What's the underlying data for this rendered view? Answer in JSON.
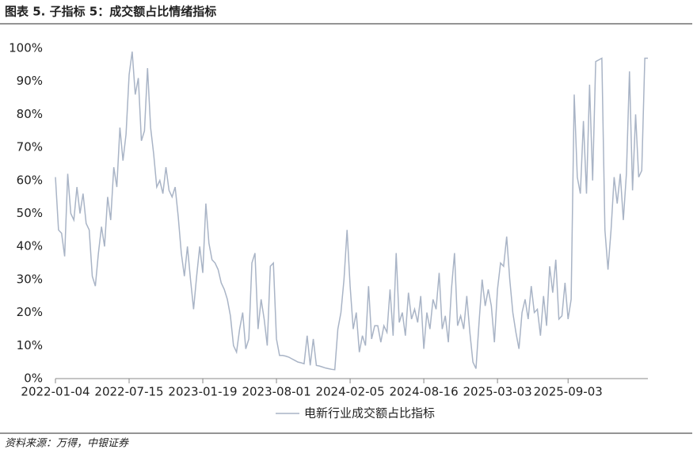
{
  "header": {
    "title": "图表 5. 子指标 5：成交额占比情绪指标"
  },
  "chart_data": {
    "type": "line",
    "categories": [
      "2022-01-04",
      null,
      null,
      null,
      null,
      null,
      null,
      null,
      null,
      null,
      null,
      null,
      null,
      null,
      null,
      null,
      null,
      null,
      null,
      null,
      null,
      null,
      null,
      null,
      "2022-07-15",
      null,
      null,
      null,
      null,
      null,
      null,
      null,
      null,
      null,
      null,
      null,
      null,
      null,
      null,
      null,
      null,
      null,
      null,
      null,
      null,
      null,
      null,
      null,
      "2023-01-19",
      null,
      null,
      null,
      null,
      null,
      null,
      null,
      null,
      null,
      null,
      null,
      null,
      null,
      null,
      null,
      null,
      null,
      null,
      null,
      null,
      null,
      null,
      null,
      "2023-08-01",
      null,
      null,
      null,
      null,
      null,
      null,
      null,
      null,
      null,
      null,
      null,
      null,
      null,
      null,
      null,
      null,
      null,
      null,
      null,
      null,
      null,
      null,
      null,
      "2024-02-05",
      null,
      null,
      null,
      null,
      null,
      null,
      null,
      null,
      null,
      null,
      null,
      null,
      null,
      null,
      null,
      null,
      null,
      null,
      null,
      null,
      null,
      null,
      null,
      "2024-08-16",
      null,
      null,
      null,
      null,
      null,
      null,
      null,
      null,
      null,
      null,
      null,
      null,
      null,
      null,
      null,
      null,
      null,
      null,
      null,
      null,
      null,
      null,
      null,
      "2025-03-03",
      null,
      null,
      null,
      null,
      null,
      null,
      null,
      null,
      null,
      null,
      null,
      null,
      null,
      null,
      null,
      null,
      null,
      null,
      null,
      null,
      null,
      null,
      "2025-09-03",
      null,
      null,
      null,
      null,
      null,
      null,
      null,
      null,
      null,
      null,
      null,
      null,
      null,
      null,
      null,
      null,
      null,
      null,
      null,
      null,
      null,
      null,
      null,
      null,
      null,
      null
    ],
    "series": [
      {
        "name": "电新行业成交额占比指标",
        "color": "#a9b4c6",
        "values": [
          61,
          45,
          44,
          37,
          62,
          50,
          48,
          58,
          50,
          56,
          47,
          45,
          31,
          28,
          38,
          46,
          40,
          55,
          48,
          64,
          58,
          76,
          66,
          74,
          92,
          99,
          86,
          91,
          72,
          75,
          94,
          76,
          68,
          58,
          60,
          56,
          64,
          57,
          55,
          58,
          49,
          38,
          31,
          40,
          30,
          21,
          31,
          40,
          32,
          53,
          41,
          36,
          35,
          33,
          29,
          27,
          24,
          19,
          10,
          8,
          15,
          20,
          9,
          12,
          35,
          38,
          15,
          24,
          18,
          10,
          34,
          35,
          12,
          7,
          7,
          6.8,
          6.5,
          6,
          5.5,
          5,
          4.8,
          4.5,
          13,
          4,
          12,
          4,
          3.8,
          3.5,
          3.2,
          3,
          2.8,
          2.7,
          15,
          20,
          30,
          45,
          28,
          15,
          20,
          8,
          13,
          10,
          28,
          12,
          16,
          16,
          11,
          16,
          14,
          27,
          13,
          38,
          17,
          20,
          13,
          26,
          18,
          21,
          17,
          25,
          9,
          20,
          15,
          24,
          21,
          32,
          15,
          19,
          11,
          27,
          38,
          16,
          19,
          15,
          25,
          14,
          5,
          3,
          17,
          30,
          22,
          27,
          22,
          11,
          27,
          35,
          34,
          43,
          30,
          20,
          14,
          9,
          20,
          24,
          18,
          28,
          20,
          21,
          13,
          25,
          16,
          34,
          26,
          36,
          18,
          19,
          29,
          18,
          24,
          86,
          61,
          56,
          78,
          56,
          89,
          60,
          96,
          96.5,
          97,
          45,
          33,
          45,
          61,
          53,
          62,
          48,
          62,
          93,
          57,
          80,
          61,
          63,
          97,
          97
        ]
      }
    ],
    "ylim": [
      0,
      100
    ],
    "yticks": [
      {
        "value": 0,
        "label": "0%"
      },
      {
        "value": 10,
        "label": "10%"
      },
      {
        "value": 20,
        "label": "20%"
      },
      {
        "value": 30,
        "label": "30%"
      },
      {
        "value": 40,
        "label": "40%"
      },
      {
        "value": 50,
        "label": "50%"
      },
      {
        "value": 60,
        "label": "60%"
      },
      {
        "value": 70,
        "label": "70%"
      },
      {
        "value": 80,
        "label": "80%"
      },
      {
        "value": 90,
        "label": "90%"
      },
      {
        "value": 100,
        "label": "100%"
      }
    ],
    "grid": false
  },
  "footer": {
    "source": "资料来源：万得，中银证券"
  }
}
